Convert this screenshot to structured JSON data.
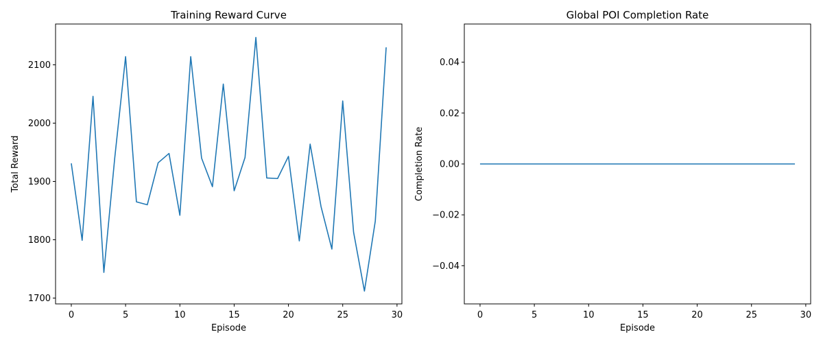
{
  "chart_data": [
    {
      "type": "line",
      "title": "Training Reward Curve",
      "xlabel": "Episode",
      "ylabel": "Total Reward",
      "xlim": [
        -1.45,
        30.45
      ],
      "ylim": [
        1690,
        2170
      ],
      "xticks": [
        0,
        5,
        10,
        15,
        20,
        25,
        30
      ],
      "yticks": [
        1700,
        1800,
        1900,
        2000,
        2100
      ],
      "ytick_labels": [
        "1700",
        "1800",
        "1900",
        "2000",
        "2100"
      ],
      "grid": false,
      "color": "#1f77b4",
      "series": [
        {
          "x": [
            0,
            1,
            2,
            3,
            4,
            5,
            6,
            7,
            8,
            9,
            10,
            11,
            12,
            13,
            14,
            15,
            16,
            17,
            18,
            19,
            20,
            21,
            22,
            23,
            24,
            25,
            26,
            27,
            28,
            29
          ],
          "values": [
            1931,
            1799,
            2046,
            1744,
            1940,
            2114,
            1865,
            1860,
            1932,
            1948,
            1842,
            2114,
            1940,
            1891,
            2067,
            1884,
            1941,
            2147,
            1906,
            1905,
            1943,
            1798,
            1964,
            1857,
            1784,
            2038,
            1813,
            1712,
            1832,
            2130
          ]
        }
      ]
    },
    {
      "type": "line",
      "title": "Global POI Completion Rate",
      "xlabel": "Episode",
      "ylabel": "Completion Rate",
      "xlim": [
        -1.45,
        30.45
      ],
      "ylim": [
        -0.055,
        0.055
      ],
      "xticks": [
        0,
        5,
        10,
        15,
        20,
        25,
        30
      ],
      "yticks": [
        -0.04,
        -0.02,
        0.0,
        0.02,
        0.04
      ],
      "ytick_labels": [
        "−0.04",
        "−0.02",
        "0.00",
        "0.02",
        "0.04"
      ],
      "grid": false,
      "color": "#1f77b4",
      "series": [
        {
          "x": [
            0,
            1,
            2,
            3,
            4,
            5,
            6,
            7,
            8,
            9,
            10,
            11,
            12,
            13,
            14,
            15,
            16,
            17,
            18,
            19,
            20,
            21,
            22,
            23,
            24,
            25,
            26,
            27,
            28,
            29
          ],
          "values": [
            0,
            0,
            0,
            0,
            0,
            0,
            0,
            0,
            0,
            0,
            0,
            0,
            0,
            0,
            0,
            0,
            0,
            0,
            0,
            0,
            0,
            0,
            0,
            0,
            0,
            0,
            0,
            0,
            0,
            0
          ]
        }
      ]
    }
  ]
}
